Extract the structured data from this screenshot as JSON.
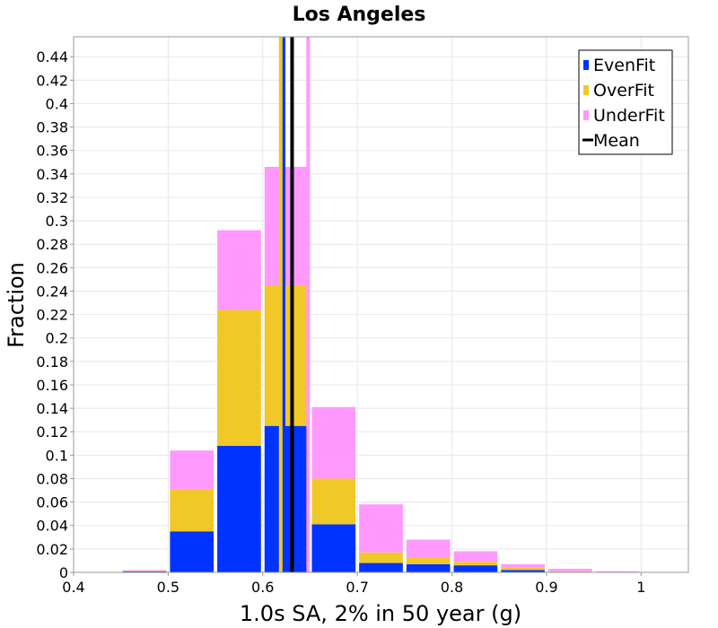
{
  "chart_data": {
    "type": "bar",
    "stacked": true,
    "title": "Los Angeles",
    "xlabel": "1.0s SA, 2% in 50 year (g)",
    "ylabel": "Fraction",
    "xlim": [
      0.4,
      1.05
    ],
    "ylim": [
      0,
      0.457
    ],
    "bin_width": 0.05,
    "x_ticks": [
      "0.4",
      "0.5",
      "0.6",
      "0.7",
      "0.8",
      "0.9",
      "1"
    ],
    "x_tick_values": [
      0.4,
      0.5,
      0.6,
      0.7,
      0.8,
      0.9,
      1.0
    ],
    "y_ticks": [
      "0",
      "0.02",
      "0.04",
      "0.06",
      "0.08",
      "0.1",
      "0.12",
      "0.14",
      "0.16",
      "0.18",
      "0.2",
      "0.22",
      "0.24",
      "0.26",
      "0.28",
      "0.3",
      "0.32",
      "0.34",
      "0.36",
      "0.38",
      "0.4",
      "0.42",
      "0.44"
    ],
    "y_tick_values": [
      0,
      0.02,
      0.04,
      0.06,
      0.08,
      0.1,
      0.12,
      0.14,
      0.16,
      0.18,
      0.2,
      0.22,
      0.24,
      0.26,
      0.28,
      0.3,
      0.32,
      0.34,
      0.36,
      0.38,
      0.4,
      0.42,
      0.44
    ],
    "grid": true,
    "legend_position": "top-right",
    "bin_centers": [
      0.475,
      0.525,
      0.575,
      0.625,
      0.675,
      0.725,
      0.775,
      0.825,
      0.875,
      0.925,
      0.975
    ],
    "series": [
      {
        "name": "EvenFit",
        "color": "#0033ff",
        "values": [
          0.0008,
          0.035,
          0.108,
          0.125,
          0.041,
          0.008,
          0.007,
          0.006,
          0.002,
          0.0005,
          0.0001
        ]
      },
      {
        "name": "OverFit",
        "color": "#f0c828",
        "values": [
          0.0005,
          0.036,
          0.116,
          0.12,
          0.039,
          0.009,
          0.006,
          0.003,
          0.002,
          0.0005,
          0.0001
        ]
      },
      {
        "name": "UnderFit",
        "color": "#ff99ff",
        "values": [
          0.0007,
          0.033,
          0.068,
          0.101,
          0.061,
          0.041,
          0.015,
          0.009,
          0.003,
          0.002,
          0.0008
        ]
      }
    ],
    "mean_lines": [
      {
        "series": "EvenFit",
        "x": 0.622,
        "color": "#0033ff"
      },
      {
        "series": "OverFit",
        "x": 0.619,
        "color": "#f0c828"
      },
      {
        "series": "UnderFit",
        "x": 0.648,
        "color": "#ff99ff"
      },
      {
        "series": "Mean",
        "x": 0.631,
        "color": "#000000"
      }
    ],
    "legend": [
      {
        "name": "EvenFit",
        "color": "#0033ff",
        "kind": "box"
      },
      {
        "name": "OverFit",
        "color": "#f0c828",
        "kind": "box"
      },
      {
        "name": "UnderFit",
        "color": "#ff99ff",
        "kind": "box"
      },
      {
        "name": "Mean",
        "color": "#000000",
        "kind": "line"
      }
    ]
  }
}
